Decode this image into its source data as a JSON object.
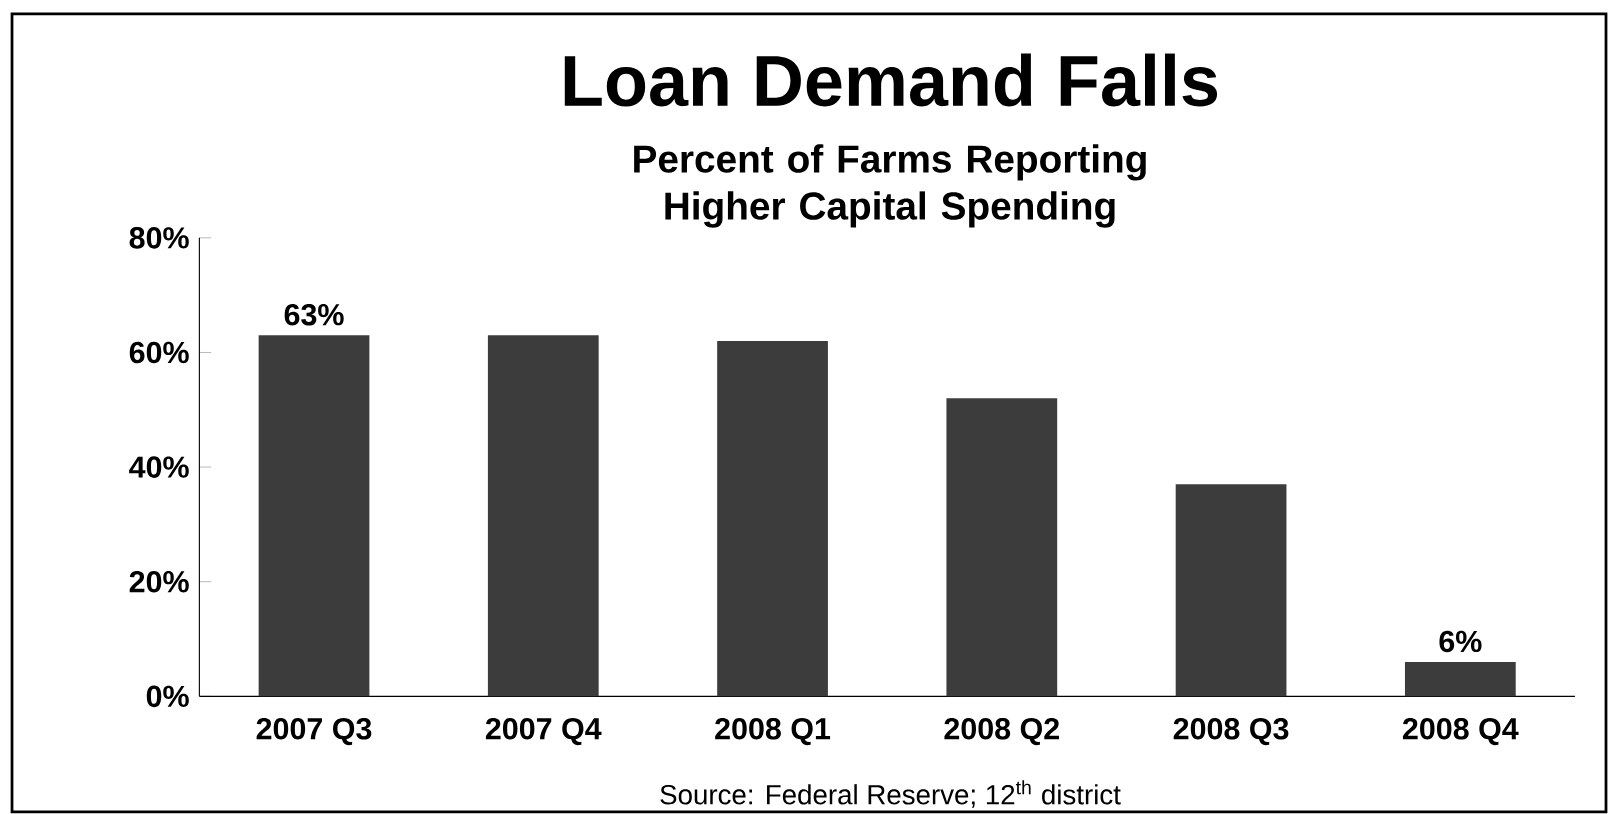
{
  "chart_data": {
    "type": "bar",
    "title": "Loan Demand Falls",
    "subtitle": "Percent of Farms Reporting Higher Capital Spending",
    "categories": [
      "2007 Q3",
      "2007 Q4",
      "2008 Q1",
      "2008 Q2",
      "2008 Q3",
      "2008 Q4"
    ],
    "values": [
      63,
      63,
      62,
      52,
      37,
      6
    ],
    "value_labels": [
      "63%",
      null,
      null,
      null,
      null,
      "6%"
    ],
    "color": "#3c3c3c",
    "ylim": [
      0,
      80
    ],
    "yticks": [
      {
        "value": 0,
        "label": "0%"
      },
      {
        "value": 20,
        "label": "20%"
      },
      {
        "value": 40,
        "label": "40%"
      },
      {
        "value": 60,
        "label": "60%"
      },
      {
        "value": 80,
        "label": "80%"
      }
    ],
    "annotations": [
      "Source: Federal Reserve; 12$^{th}$ district"
    ]
  }
}
